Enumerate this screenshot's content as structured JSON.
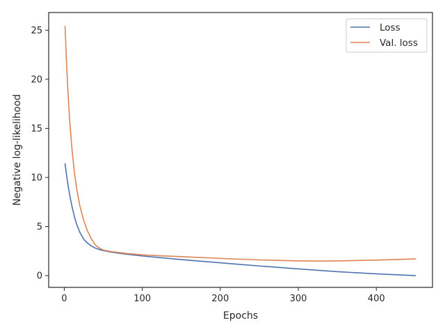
{
  "chart_data": {
    "type": "line",
    "title": "",
    "xlabel": "Epochs",
    "ylabel": "Negative log-likelihood",
    "xlim": [
      -20,
      472
    ],
    "ylim": [
      -1.2,
      26.8
    ],
    "xticks": [
      0,
      100,
      200,
      300,
      400
    ],
    "yticks": [
      0,
      5,
      10,
      15,
      20,
      25
    ],
    "grid": false,
    "legend_position": "top-right",
    "series": [
      {
        "name": "Loss",
        "color": "#4c72b0",
        "x": [
          1,
          3,
          5,
          7,
          10,
          13,
          16,
          20,
          25,
          30,
          35,
          40,
          45,
          50,
          60,
          70,
          80,
          100,
          120,
          150,
          200,
          250,
          300,
          350,
          400,
          450
        ],
        "y": [
          11.4,
          10.2,
          9.1,
          8.2,
          7.0,
          6.0,
          5.2,
          4.4,
          3.7,
          3.3,
          3.0,
          2.8,
          2.65,
          2.55,
          2.4,
          2.28,
          2.18,
          2.0,
          1.85,
          1.63,
          1.3,
          0.98,
          0.68,
          0.4,
          0.18,
          0.0
        ]
      },
      {
        "name": "Val. loss",
        "color": "#dd8452",
        "x": [
          1,
          3,
          5,
          7,
          10,
          13,
          16,
          20,
          25,
          30,
          35,
          40,
          45,
          50,
          60,
          70,
          80,
          100,
          120,
          150,
          200,
          250,
          300,
          330,
          350,
          400,
          450
        ],
        "y": [
          25.4,
          21.5,
          18.3,
          15.7,
          12.8,
          10.5,
          8.8,
          7.1,
          5.6,
          4.5,
          3.7,
          3.1,
          2.8,
          2.6,
          2.45,
          2.35,
          2.25,
          2.12,
          2.03,
          1.93,
          1.75,
          1.6,
          1.5,
          1.48,
          1.5,
          1.58,
          1.7
        ]
      }
    ]
  }
}
